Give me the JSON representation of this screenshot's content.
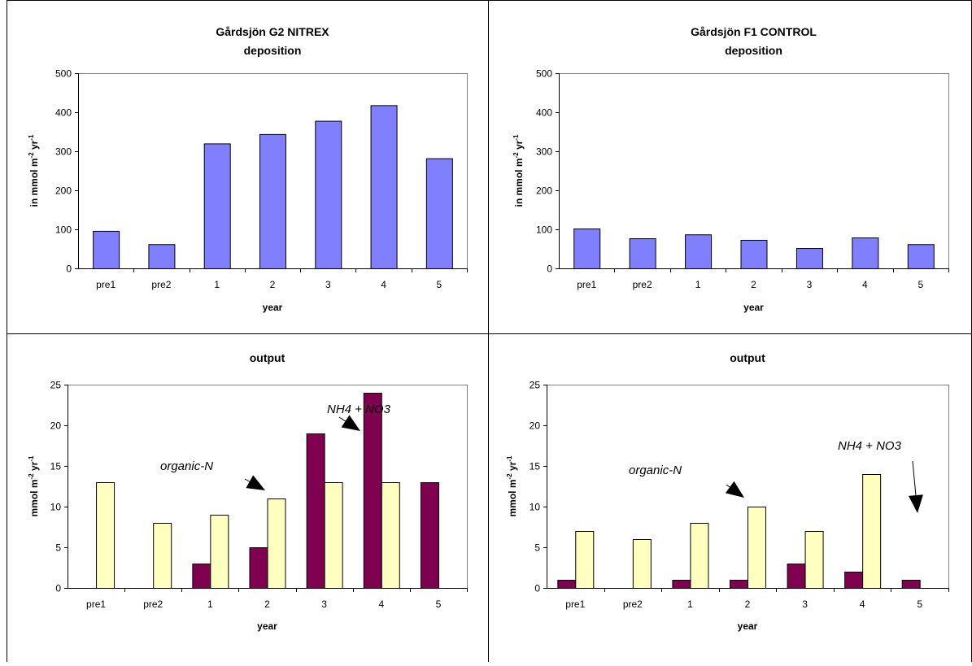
{
  "colors": {
    "deposition_bar": "#8080ff",
    "inorganic_bar": "#800050",
    "organic_bar": "#ffffc0",
    "grid_border": "#000000"
  },
  "chart_data": [
    {
      "type": "bar",
      "title": [
        "Gårdsjön  G2 NITREX",
        "deposition"
      ],
      "xlabel": "year",
      "ylabel": "in mmol m-2 yr-1",
      "categories": [
        "pre1",
        "pre2",
        "1",
        "2",
        "3",
        "4",
        "5"
      ],
      "series": [
        {
          "values": [
            96,
            62,
            320,
            344,
            378,
            418,
            282
          ]
        }
      ],
      "ylim": [
        0,
        500
      ],
      "yticks": [
        0,
        100,
        200,
        300,
        400,
        500
      ],
      "annotations": []
    },
    {
      "type": "bar",
      "title": [
        "Gårdsjön  F1 CONTROL",
        "deposition"
      ],
      "xlabel": "year",
      "ylabel": "in mmol m-2 yr-1",
      "categories": [
        "pre1",
        "pre2",
        "1",
        "2",
        "3",
        "4",
        "5"
      ],
      "series": [
        {
          "values": [
            102,
            77,
            87,
            73,
            52,
            79,
            62
          ]
        }
      ],
      "ylim": [
        0,
        500
      ],
      "yticks": [
        0,
        100,
        200,
        300,
        400,
        500
      ],
      "annotations": []
    },
    {
      "type": "bar",
      "title": [
        "output"
      ],
      "xlabel": "year",
      "ylabel": "mmol m-2 yr-1",
      "categories": [
        "pre1",
        "pre2",
        "1",
        "2",
        "3",
        "4",
        "5"
      ],
      "series": [
        {
          "values": [
            null,
            null,
            3,
            5,
            19,
            24,
            13
          ]
        },
        {
          "values": [
            13,
            8,
            9,
            11,
            13,
            13,
            null
          ]
        }
      ],
      "ylim": [
        0,
        25
      ],
      "yticks": [
        0,
        5,
        10,
        15,
        20,
        25
      ],
      "annotations": [
        {
          "text": "organic-N",
          "points_to": {
            "category": "2",
            "series": 1
          }
        },
        {
          "text": "NH4 + NO3",
          "points_to": {
            "category": "4",
            "series": 0
          }
        }
      ]
    },
    {
      "type": "bar",
      "title": [
        "output"
      ],
      "xlabel": "year",
      "ylabel": "mmol m-2 yr-1",
      "categories": [
        "pre1",
        "pre2",
        "1",
        "2",
        "3",
        "4",
        "5"
      ],
      "series": [
        {
          "values": [
            1,
            null,
            1,
            1,
            3,
            2,
            1
          ]
        },
        {
          "values": [
            7,
            6,
            8,
            10,
            7,
            14,
            null
          ]
        }
      ],
      "ylim": [
        0,
        25
      ],
      "yticks": [
        0,
        5,
        10,
        15,
        20,
        25
      ],
      "annotations": [
        {
          "text": "organic-N",
          "points_to": {
            "category": "2",
            "series": 1
          }
        },
        {
          "text": "NH4 + NO3",
          "points_to": {
            "category": "5",
            "series": 0
          }
        }
      ]
    }
  ]
}
